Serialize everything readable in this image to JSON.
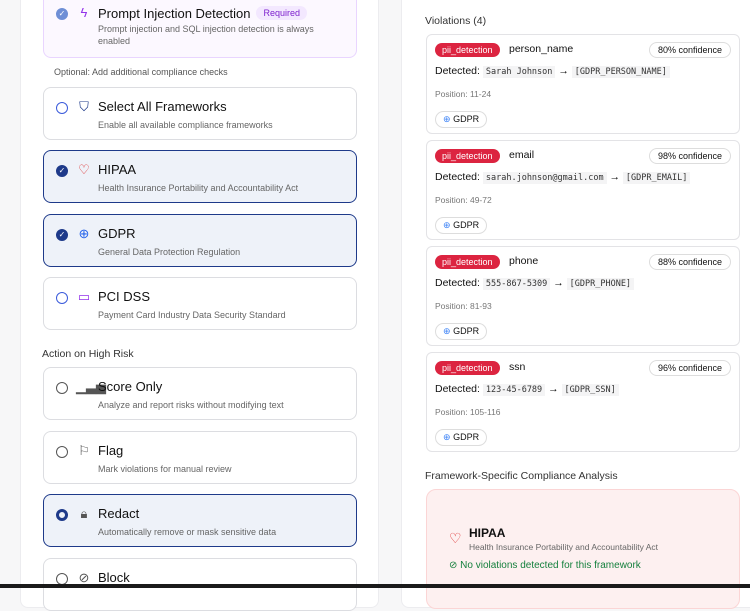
{
  "security": {
    "required": {
      "title": "Prompt Injection Detection",
      "badge": "Required",
      "desc": "Prompt injection and SQL injection detection is always enabled"
    },
    "optional_label": "Optional: Add additional compliance checks",
    "frameworks": [
      {
        "title": "Select All Frameworks",
        "desc": "Enable all available compliance frameworks",
        "selected": false,
        "icon": "shield-icon"
      },
      {
        "title": "HIPAA",
        "desc": "Health Insurance Portability and Accountability Act",
        "selected": true,
        "icon": "heart-icon"
      },
      {
        "title": "GDPR",
        "desc": "General Data Protection Regulation",
        "selected": true,
        "icon": "globe-icon"
      },
      {
        "title": "PCI DSS",
        "desc": "Payment Card Industry Data Security Standard",
        "selected": false,
        "icon": "credit-card-icon"
      }
    ],
    "action_label": "Action on High Risk",
    "actions": [
      {
        "title": "Score Only",
        "desc": "Analyze and report risks without modifying text",
        "selected": false,
        "icon": "bar-chart-icon"
      },
      {
        "title": "Flag",
        "desc": "Mark violations for manual review",
        "selected": false,
        "icon": "flag-icon"
      },
      {
        "title": "Redact",
        "desc": "Automatically remove or mask sensitive data",
        "selected": true,
        "icon": "lock-icon"
      },
      {
        "title": "Block",
        "desc": "",
        "selected": false,
        "icon": "ban-icon"
      }
    ]
  },
  "results": {
    "violations_title": "Violations (4)",
    "detected_label": "Detected:",
    "violations": [
      {
        "type": "pii_detection",
        "entity": "person_name",
        "confidence": "80% confidence",
        "original": "Sarah Johnson",
        "replacement": "[GDPR_PERSON_NAME]",
        "position": "Position: 11-24",
        "framework": "GDPR"
      },
      {
        "type": "pii_detection",
        "entity": "email",
        "confidence": "98% confidence",
        "original": "sarah.johnson@gmail.com",
        "replacement": "[GDPR_EMAIL]",
        "position": "Position: 49-72",
        "framework": "GDPR"
      },
      {
        "type": "pii_detection",
        "entity": "phone",
        "confidence": "88% confidence",
        "original": "555-867-5309",
        "replacement": "[GDPR_PHONE]",
        "position": "Position: 81-93",
        "framework": "GDPR"
      },
      {
        "type": "pii_detection",
        "entity": "ssn",
        "confidence": "96% confidence",
        "original": "123-45-6789",
        "replacement": "[GDPR_SSN]",
        "position": "Position: 105-116",
        "framework": "GDPR"
      }
    ],
    "framework_title": "Framework-Specific Compliance Analysis",
    "framework_analysis": {
      "name": "HIPAA",
      "desc": "Health Insurance Portability and Accountability Act",
      "status": "No violations detected for this framework"
    }
  },
  "colors": {
    "accent": "#1e3a8a",
    "danger": "#dc2440",
    "success": "#15803d",
    "required": "#7e22ce"
  }
}
